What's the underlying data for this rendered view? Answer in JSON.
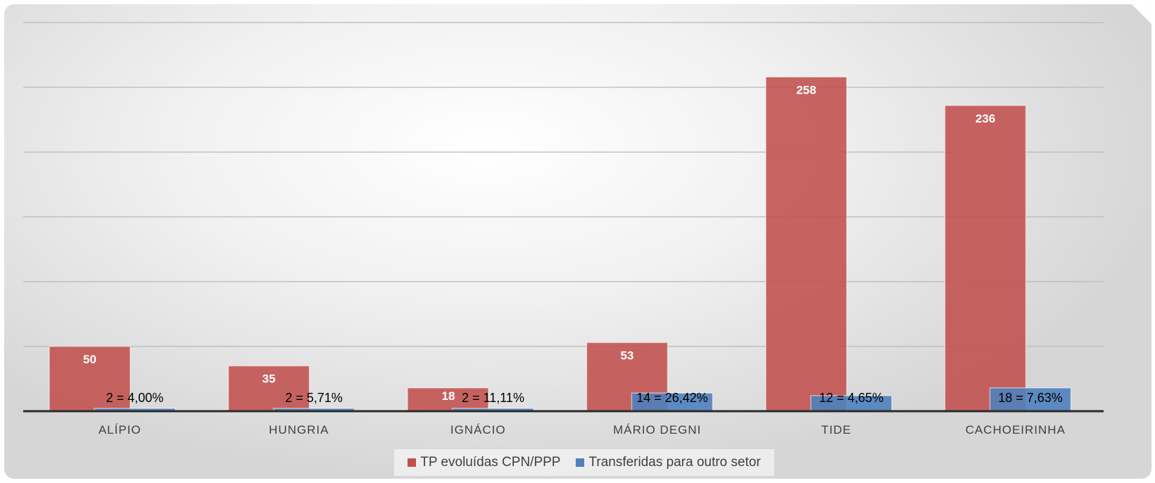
{
  "chart_data": {
    "type": "bar",
    "categories": [
      "ALÍPIO",
      "HUNGRIA",
      "IGNÁCIO",
      "MÁRIO DEGNI",
      "TIDE",
      "CACHOEIRINHA"
    ],
    "series": [
      {
        "name": "TP evoluídas CPN/PPP",
        "color": "#c0504d",
        "values": [
          50,
          35,
          18,
          53,
          258,
          236
        ],
        "labels": [
          "50",
          "35",
          "18",
          "53",
          "258",
          "236"
        ]
      },
      {
        "name": "Transferidas para outro setor",
        "color": "#4f81bd",
        "values": [
          2,
          2,
          2,
          14,
          12,
          18
        ],
        "labels": [
          "2 = 4,00%",
          "2 = 5,71%",
          "2 = 11,11%",
          "14 = 26,42%",
          "12 = 4,65%",
          "18 = 7,63%"
        ]
      }
    ],
    "ylim": [
      0,
      300
    ],
    "grid": true,
    "legend_position": "bottom"
  }
}
